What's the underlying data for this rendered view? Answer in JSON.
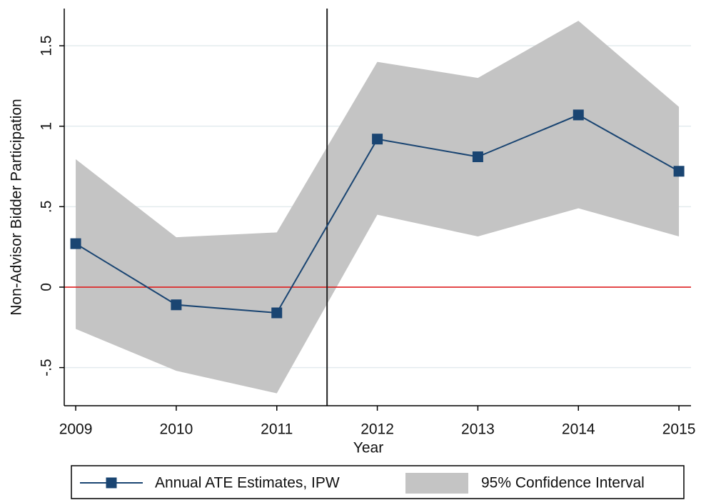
{
  "chart_data": {
    "type": "line",
    "x_label": "Year",
    "y_label": "Non-Advisor Bidder Participation",
    "x": [
      2009,
      2010,
      2011,
      2012,
      2013,
      2014,
      2015
    ],
    "series": [
      {
        "name": "Annual ATE Estimates, IPW",
        "color": "#1a4572",
        "values": [
          0.27,
          -0.11,
          -0.16,
          0.92,
          0.81,
          1.07,
          0.72
        ]
      }
    ],
    "band": {
      "name": "95% Confidence Interval",
      "color": "#c4c4c4",
      "lower": [
        -0.26,
        -0.52,
        -0.66,
        0.45,
        0.315,
        0.49,
        0.315
      ],
      "upper": [
        0.795,
        0.31,
        0.34,
        1.4,
        1.3,
        1.655,
        1.12
      ]
    },
    "hlines": [
      {
        "value": 0,
        "color": "#e01010"
      }
    ],
    "vlines": [
      {
        "value": 2011.5,
        "color": "#222222"
      }
    ],
    "xlim": [
      2008.886,
      2015.12
    ],
    "ylim": [
      -0.737,
      1.731
    ],
    "xticks": [
      2009,
      2010,
      2011,
      2012,
      2013,
      2014,
      2015
    ],
    "yticks": [
      {
        "value": -0.5,
        "label": "-.5"
      },
      0,
      {
        "value": 0.5,
        "label": ".5"
      },
      1,
      {
        "value": 1.5,
        "label": "1.5"
      }
    ],
    "grid": true
  }
}
